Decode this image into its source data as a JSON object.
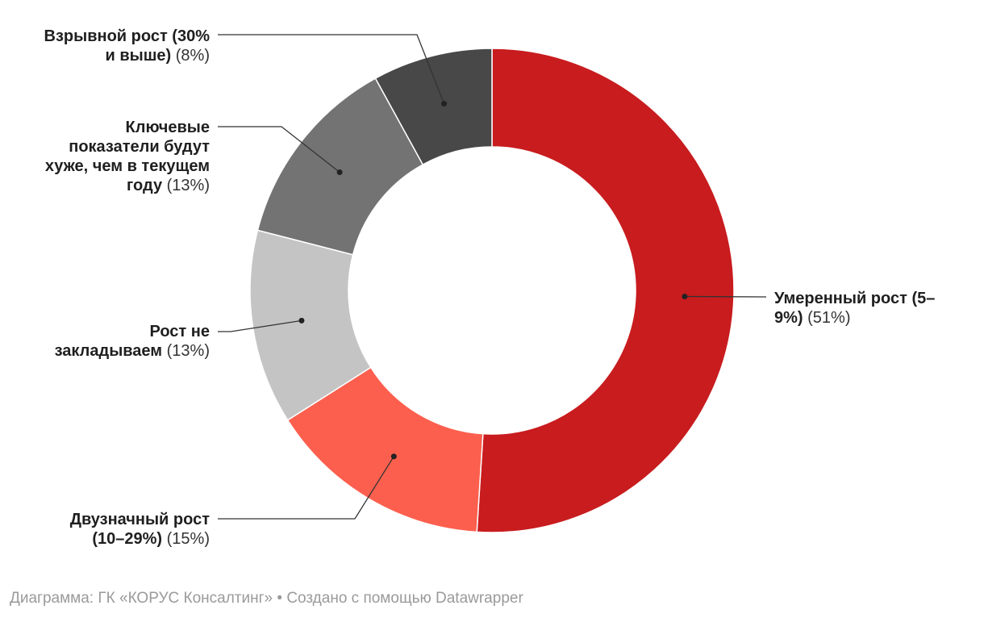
{
  "chart_data": {
    "type": "pie",
    "donut": true,
    "slices": [
      {
        "label": "Умеренный рост (5–9%)",
        "value": 51,
        "pct_text": "(51%)",
        "color": "#c81c1e"
      },
      {
        "label": "Двузначный рост (10–29%)",
        "value": 15,
        "pct_text": "(15%)",
        "color": "#fd5f4e"
      },
      {
        "label": "Рост не закладываем",
        "value": 13,
        "pct_text": "(13%)",
        "color": "#c4c4c4"
      },
      {
        "label": "Ключевые показатели будут хуже, чем в текущем году",
        "value": 13,
        "pct_text": "(13%)",
        "color": "#737373"
      },
      {
        "label": "Взрывной рост (30% и выше)",
        "value": 8,
        "pct_text": "(8%)",
        "color": "#484848"
      }
    ]
  },
  "labels": {
    "moderate": {
      "l1": "Умеренный рост (5–",
      "l2": "9%)",
      "pct": "(51%)"
    },
    "double": {
      "l1": "Двузначный рост",
      "l2": "(10–29%)",
      "pct": "(15%)"
    },
    "none": {
      "l1": "Рост не",
      "l2": "закладываем",
      "pct": "(13%)"
    },
    "worse": {
      "l1": "Ключевые",
      "l2": "показатели будут",
      "l3": "хуже, чем в текущем",
      "l4": "году",
      "pct": "(13%)"
    },
    "explosive": {
      "l1": "Взрывной рост (30%",
      "l2": "и выше)",
      "pct": "(8%)"
    }
  },
  "footer": "Диаграмма: ГК «КОРУС Консалтинг» • Создано с помощью Datawrapper"
}
